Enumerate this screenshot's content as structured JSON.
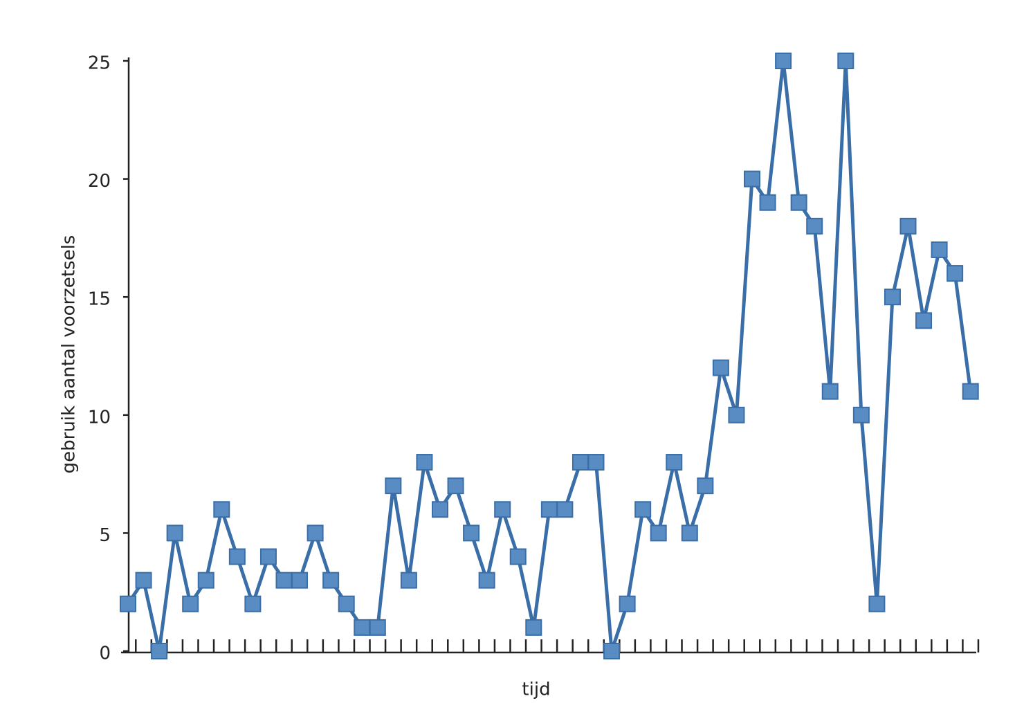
{
  "chart_data": {
    "type": "line",
    "x_label": "tijd",
    "y_label": "gebruik aantal voorzetsels",
    "categories": [
      null,
      null,
      null,
      null,
      null,
      null,
      null,
      null,
      null,
      null,
      null,
      null,
      null,
      null,
      null,
      null,
      null,
      null,
      null,
      null,
      null,
      null,
      null,
      null,
      null,
      null,
      null,
      null,
      null,
      null,
      null,
      null,
      null,
      null,
      null,
      null,
      null,
      null,
      null,
      null,
      null,
      null,
      null,
      null,
      null,
      null,
      null,
      null,
      null,
      null,
      null,
      null,
      null,
      null,
      null
    ],
    "series": [
      {
        "color": "#3a6ea8",
        "marker_color": "#5a8cc4",
        "values": [
          2,
          3,
          0,
          5,
          2,
          3,
          6,
          4,
          2,
          4,
          3,
          3,
          5,
          3,
          2,
          1,
          1,
          7,
          3,
          8,
          6,
          7,
          5,
          3,
          6,
          4,
          1,
          6,
          6,
          8,
          8,
          0,
          2,
          6,
          5,
          8,
          5,
          7,
          12,
          10,
          20,
          19,
          25,
          19,
          18,
          11,
          25,
          10,
          2,
          15,
          18,
          14,
          17,
          16,
          11
        ]
      }
    ],
    "ylim": [
      0,
      25
    ],
    "yticks": [
      0,
      5,
      10,
      15,
      20,
      25
    ]
  }
}
